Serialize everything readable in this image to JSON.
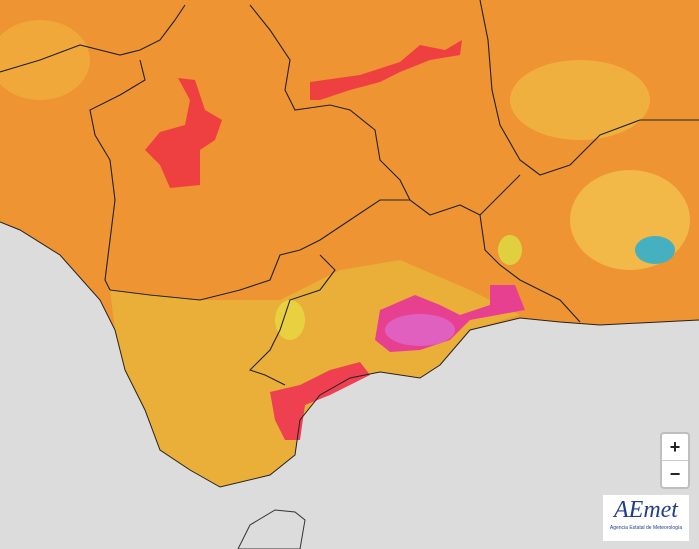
{
  "controls": {
    "zoom_in": "+",
    "zoom_out": "−"
  },
  "logo": {
    "name": "AEmet",
    "subtitle": "Agencia Estatal de Meteorología"
  }
}
